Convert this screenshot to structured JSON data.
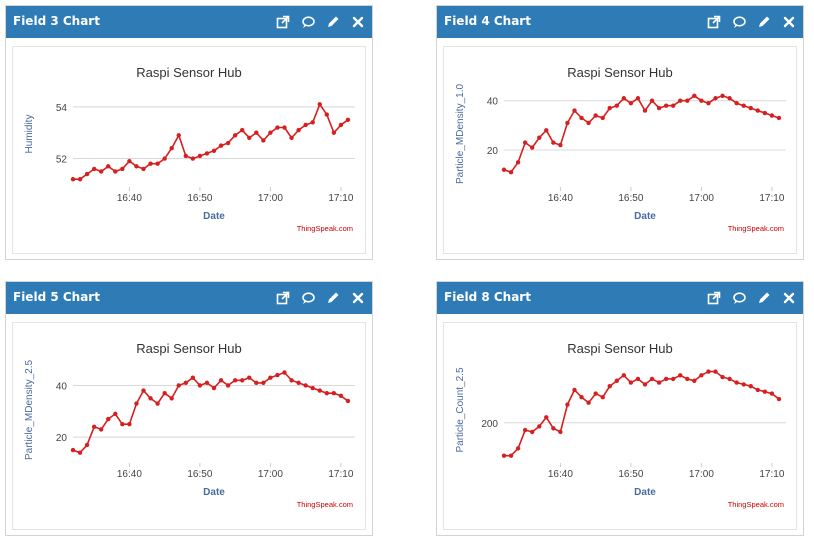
{
  "colors": {
    "header": "#2e7bb6",
    "series": "#d62020",
    "credit": "#cc0000",
    "axis_label": "#4a6aa0"
  },
  "widgets": [
    {
      "title": "Field 3 Chart",
      "tools": [
        "external-link-icon",
        "comment-icon",
        "pencil-icon",
        "close-icon"
      ],
      "chart_data": {
        "type": "line",
        "title": "Raspi Sensor Hub",
        "xlabel": "Date",
        "ylabel": "Humidity",
        "credit": "ThingSpeak.com",
        "x_ticks": [
          "16:40",
          "16:50",
          "17:00",
          "17:10"
        ],
        "y_ticks": [
          52,
          54
        ],
        "x_range": [
          "16:32",
          "17:12"
        ],
        "ylim": [
          50.9,
          55.0
        ],
        "series": [
          {
            "x": [
              "16:32",
              "16:33",
              "16:34",
              "16:35",
              "16:36",
              "16:37",
              "16:38",
              "16:39",
              "16:40",
              "16:41",
              "16:42",
              "16:43",
              "16:44",
              "16:45",
              "16:46",
              "16:47",
              "16:48",
              "16:49",
              "16:50",
              "16:51",
              "16:52",
              "16:53",
              "16:54",
              "16:55",
              "16:56",
              "16:57",
              "16:58",
              "16:59",
              "17:00",
              "17:01",
              "17:02",
              "17:03",
              "17:04",
              "17:05",
              "17:06",
              "17:07",
              "17:08",
              "17:09",
              "17:10",
              "17:11"
            ],
            "y": [
              51.2,
              51.2,
              51.4,
              51.6,
              51.5,
              51.7,
              51.5,
              51.6,
              51.9,
              51.7,
              51.6,
              51.8,
              51.8,
              52.0,
              52.4,
              52.9,
              52.1,
              52.0,
              52.1,
              52.2,
              52.3,
              52.5,
              52.6,
              52.9,
              53.1,
              52.8,
              53.0,
              52.7,
              53.0,
              53.2,
              53.2,
              52.8,
              53.1,
              53.3,
              53.4,
              54.1,
              53.7,
              53.0,
              53.3,
              53.5
            ]
          }
        ]
      }
    },
    {
      "title": "Field 4 Chart",
      "tools": [
        "external-link-icon",
        "comment-icon",
        "pencil-icon",
        "close-icon"
      ],
      "chart_data": {
        "type": "line",
        "title": "Raspi Sensor Hub",
        "xlabel": "Date",
        "ylabel": "Particle_MDensity_1.0",
        "credit": "ThingSpeak.com",
        "x_ticks": [
          "16:40",
          "16:50",
          "17:00",
          "17:10"
        ],
        "y_ticks": [
          20,
          40
        ],
        "x_range": [
          "16:32",
          "17:12"
        ],
        "ylim": [
          5,
          48
        ],
        "series": [
          {
            "x": [
              "16:32",
              "16:33",
              "16:34",
              "16:35",
              "16:36",
              "16:37",
              "16:38",
              "16:39",
              "16:40",
              "16:41",
              "16:42",
              "16:43",
              "16:44",
              "16:45",
              "16:46",
              "16:47",
              "16:48",
              "16:49",
              "16:50",
              "16:51",
              "16:52",
              "16:53",
              "16:54",
              "16:55",
              "16:56",
              "16:57",
              "16:58",
              "16:59",
              "17:00",
              "17:01",
              "17:02",
              "17:03",
              "17:04",
              "17:05",
              "17:06",
              "17:07",
              "17:08",
              "17:09",
              "17:10",
              "17:11"
            ],
            "y": [
              12,
              11,
              15,
              23,
              21,
              25,
              28,
              23,
              22,
              31,
              36,
              33,
              31,
              34,
              33,
              37,
              38,
              41,
              39,
              41,
              36,
              40,
              37,
              38,
              38,
              40,
              40,
              42,
              40,
              39,
              41,
              42,
              41,
              39,
              38,
              37,
              36,
              35,
              34,
              33
            ]
          }
        ]
      }
    },
    {
      "title": "Field 5 Chart",
      "tools": [
        "external-link-icon",
        "comment-icon",
        "pencil-icon",
        "close-icon"
      ],
      "chart_data": {
        "type": "line",
        "title": "Raspi Sensor Hub",
        "xlabel": "Date",
        "ylabel": "Particle_MDensity_2.5",
        "credit": "ThingSpeak.com",
        "x_ticks": [
          "16:40",
          "16:50",
          "17:00",
          "17:10"
        ],
        "y_ticks": [
          20,
          40
        ],
        "x_range": [
          "16:32",
          "17:12"
        ],
        "ylim": [
          10,
          51
        ],
        "series": [
          {
            "x": [
              "16:32",
              "16:33",
              "16:34",
              "16:35",
              "16:36",
              "16:37",
              "16:38",
              "16:39",
              "16:40",
              "16:41",
              "16:42",
              "16:43",
              "16:44",
              "16:45",
              "16:46",
              "16:47",
              "16:48",
              "16:49",
              "16:50",
              "16:51",
              "16:52",
              "16:53",
              "16:54",
              "16:55",
              "16:56",
              "16:57",
              "16:58",
              "16:59",
              "17:00",
              "17:01",
              "17:02",
              "17:03",
              "17:04",
              "17:05",
              "17:06",
              "17:07",
              "17:08",
              "17:09",
              "17:10",
              "17:11"
            ],
            "y": [
              15,
              14,
              17,
              24,
              23,
              27,
              29,
              25,
              25,
              33,
              38,
              35,
              33,
              37,
              35,
              40,
              41,
              43,
              40,
              41,
              39,
              42,
              40,
              42,
              42,
              43,
              41,
              41,
              43,
              44,
              45,
              42,
              41,
              40,
              39,
              38,
              37,
              37,
              36,
              34
            ]
          }
        ]
      }
    },
    {
      "title": "Field 8 Chart",
      "tools": [
        "external-link-icon",
        "comment-icon",
        "pencil-icon",
        "close-icon"
      ],
      "chart_data": {
        "type": "line",
        "title": "Raspi Sensor Hub",
        "xlabel": "Date",
        "ylabel": "Particle_Count_2.5",
        "credit": "ThingSpeak.com",
        "x_ticks": [
          "16:40",
          "16:50",
          "17:00",
          "17:10"
        ],
        "y_ticks": [
          200
        ],
        "x_range": [
          "16:32",
          "17:12"
        ],
        "ylim": [
          90,
          380
        ],
        "series": [
          {
            "x": [
              "16:32",
              "16:33",
              "16:34",
              "16:35",
              "16:36",
              "16:37",
              "16:38",
              "16:39",
              "16:40",
              "16:41",
              "16:42",
              "16:43",
              "16:44",
              "16:45",
              "16:46",
              "16:47",
              "16:48",
              "16:49",
              "16:50",
              "16:51",
              "16:52",
              "16:53",
              "16:54",
              "16:55",
              "16:56",
              "16:57",
              "16:58",
              "16:59",
              "17:00",
              "17:01",
              "17:02",
              "17:03",
              "17:04",
              "17:05",
              "17:06",
              "17:07",
              "17:08",
              "17:09",
              "17:10",
              "17:11"
            ],
            "y": [
              110,
              110,
              130,
              180,
              175,
              190,
              215,
              185,
              175,
              250,
              290,
              270,
              255,
              280,
              270,
              300,
              315,
              330,
              310,
              320,
              305,
              320,
              310,
              320,
              320,
              330,
              320,
              315,
              330,
              340,
              340,
              325,
              320,
              310,
              305,
              300,
              290,
              285,
              280,
              265
            ]
          }
        ]
      }
    }
  ]
}
